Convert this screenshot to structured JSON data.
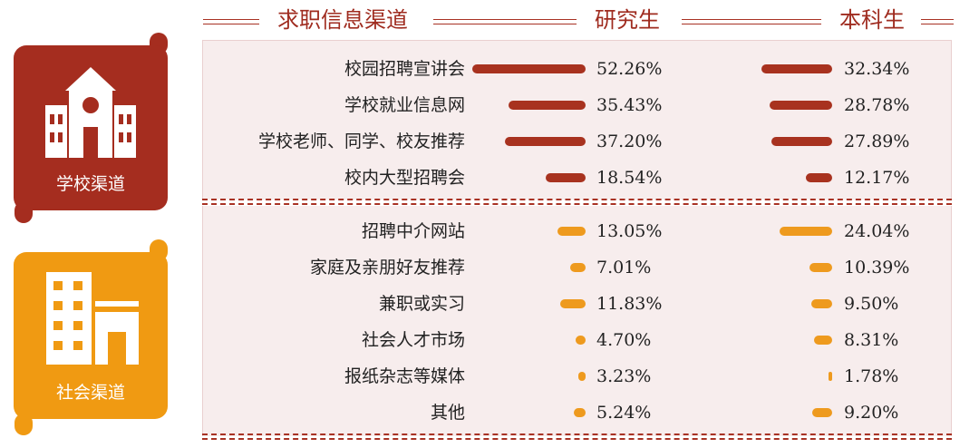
{
  "header": {
    "channel_title": "求职信息渠道",
    "col_grad": "研究生",
    "col_undergrad": "本科生"
  },
  "cards": {
    "school": {
      "label": "学校渠道",
      "icon": "school-building-icon",
      "color": "#a52d1f"
    },
    "social": {
      "label": "社会渠道",
      "icon": "office-building-icon",
      "color": "#f09a12"
    }
  },
  "colors": {
    "school_bar": "#a8321f",
    "social_bar": "#ee9a1e"
  },
  "chart_data": {
    "type": "bar",
    "series": [
      {
        "name": "研究生"
      },
      {
        "name": "本科生"
      }
    ],
    "groups": [
      {
        "name": "学校渠道",
        "rows": [
          {
            "label": "校园招聘宣讲会",
            "grad": 52.26,
            "grad_text": "52.26%",
            "under": 32.34,
            "under_text": "32.34%"
          },
          {
            "label": "学校就业信息网",
            "grad": 35.43,
            "grad_text": "35.43%",
            "under": 28.78,
            "under_text": "28.78%"
          },
          {
            "label": "学校老师、同学、校友推荐",
            "grad": 37.2,
            "grad_text": "37.20%",
            "under": 27.89,
            "under_text": "27.89%"
          },
          {
            "label": "校内大型招聘会",
            "grad": 18.54,
            "grad_text": "18.54%",
            "under": 12.17,
            "under_text": "12.17%"
          }
        ]
      },
      {
        "name": "社会渠道",
        "rows": [
          {
            "label": "招聘中介网站",
            "grad": 13.05,
            "grad_text": "13.05%",
            "under": 24.04,
            "under_text": "24.04%"
          },
          {
            "label": "家庭及亲朋好友推荐",
            "grad": 7.01,
            "grad_text": "7.01%",
            "under": 10.39,
            "under_text": "10.39%"
          },
          {
            "label": "兼职或实习",
            "grad": 11.83,
            "grad_text": "11.83%",
            "under": 9.5,
            "under_text": "9.50%"
          },
          {
            "label": "社会人才市场",
            "grad": 4.7,
            "grad_text": "4.70%",
            "under": 8.31,
            "under_text": "8.31%"
          },
          {
            "label": "报纸杂志等媒体",
            "grad": 3.23,
            "grad_text": "3.23%",
            "under": 1.78,
            "under_text": "1.78%"
          },
          {
            "label": "其他",
            "grad": 5.24,
            "grad_text": "5.24%",
            "under": 9.2,
            "under_text": "9.20%"
          }
        ]
      }
    ]
  }
}
